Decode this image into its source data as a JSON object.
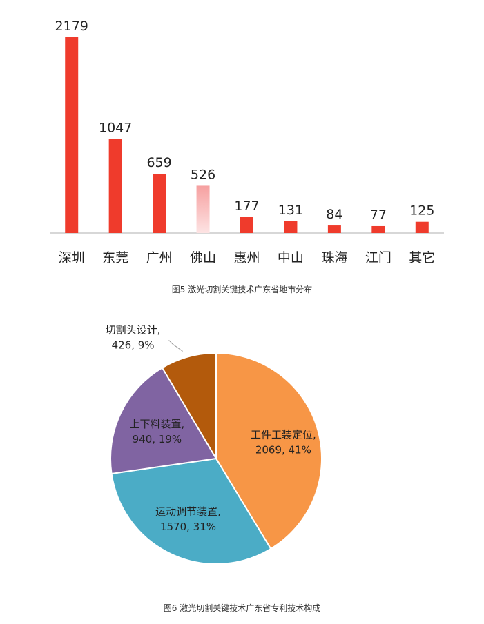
{
  "chart_data": [
    {
      "type": "bar",
      "categories": [
        "深圳",
        "东莞",
        "广州",
        "佛山",
        "惠州",
        "中山",
        "珠海",
        "江门",
        "其它"
      ],
      "values": [
        2179,
        1047,
        659,
        526,
        177,
        131,
        84,
        77,
        125
      ],
      "ylim": [
        0,
        2179
      ],
      "grid": false,
      "data_labels": true,
      "colors": {
        "bar": "#ef3b2c",
        "highlight_top": "#f6a0a0",
        "highlight_bottom": "#fde3e3",
        "axis": "#bfbfbf"
      },
      "highlighted_category": "佛山",
      "caption": "图5 激光切割关键技术广东省地市分布"
    },
    {
      "type": "pie",
      "slices": [
        {
          "name": "工件工装定位",
          "value": 2069,
          "percent": "41%",
          "label": "2069, 41%",
          "color": "#f79646"
        },
        {
          "name": "运动调节装置",
          "value": 1570,
          "percent": "31%",
          "label": "1570, 31%",
          "color": "#4bacc6"
        },
        {
          "name": "上下料装置",
          "value": 940,
          "percent": "19%",
          "label": "940, 19%",
          "color": "#8064a2"
        },
        {
          "name": "切割头设计",
          "value": 426,
          "percent": "9%",
          "label": "426, 9%",
          "color": "#b35a0c"
        }
      ],
      "start": "12 o'clock",
      "direction": "clockwise",
      "caption": "图6 激光切割关键技术广东省专利技术构成"
    }
  ]
}
